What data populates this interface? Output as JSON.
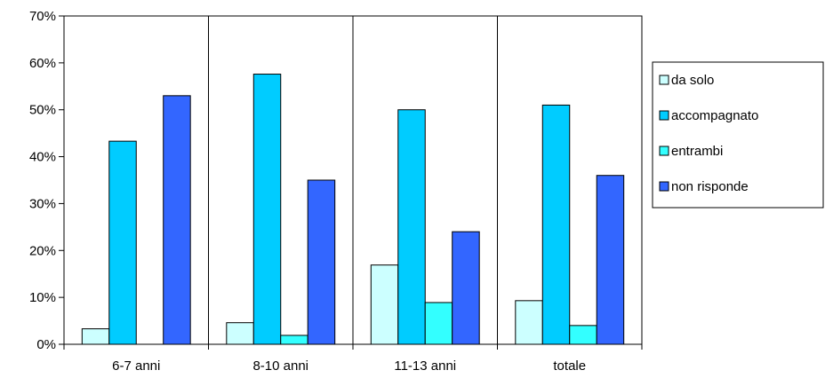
{
  "chart_data": {
    "type": "bar",
    "categories": [
      "6-7 anni",
      "8-10 anni",
      "11-13 anni",
      "totale"
    ],
    "series": [
      {
        "name": "da solo",
        "values": [
          3.3,
          4.6,
          16.9,
          9.3
        ],
        "color": "#CCFFFF"
      },
      {
        "name": "accompagnato",
        "values": [
          43.3,
          57.6,
          50.0,
          51.0
        ],
        "color": "#00CCFF"
      },
      {
        "name": "entrambi",
        "values": [
          0,
          1.9,
          8.9,
          4.0
        ],
        "color": "#33FFFF"
      },
      {
        "name": "non risponde",
        "values": [
          53.0,
          35.0,
          24.0,
          36.0
        ],
        "color": "#3366FF"
      }
    ],
    "yticks": [
      "0%",
      "10%",
      "20%",
      "30%",
      "40%",
      "50%",
      "60%",
      "70%"
    ],
    "ylim": [
      0,
      70
    ],
    "grid": "vertical category separators",
    "legend_position": "right"
  }
}
